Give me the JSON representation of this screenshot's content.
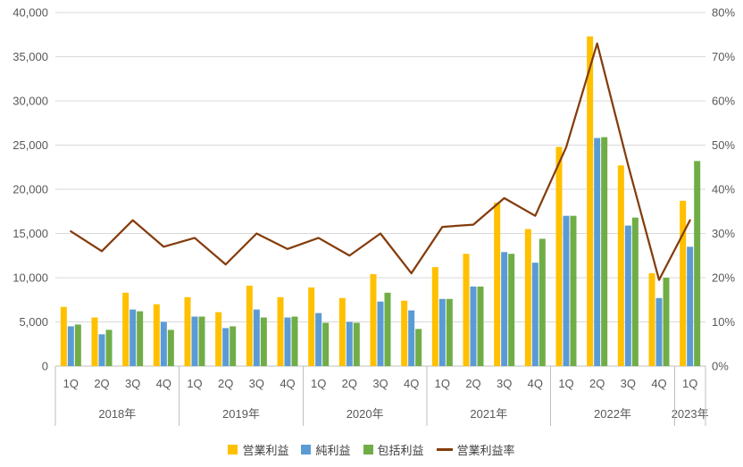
{
  "chart_data": {
    "type": "combo",
    "title": "",
    "quarter_labels": [
      "1Q",
      "2Q",
      "3Q",
      "4Q",
      "1Q",
      "2Q",
      "3Q",
      "4Q",
      "1Q",
      "2Q",
      "3Q",
      "4Q",
      "1Q",
      "2Q",
      "3Q",
      "4Q",
      "1Q",
      "2Q",
      "3Q",
      "4Q",
      "1Q"
    ],
    "year_groups": [
      {
        "label": "2018年",
        "count": 4
      },
      {
        "label": "2019年",
        "count": 4
      },
      {
        "label": "2020年",
        "count": 4
      },
      {
        "label": "2021年",
        "count": 4
      },
      {
        "label": "2022年",
        "count": 4
      },
      {
        "label": "2023年",
        "count": 1
      }
    ],
    "left_axis": {
      "min": 0,
      "max": 40000,
      "step": 5000,
      "tick_labels": [
        "0",
        "5,000",
        "10,000",
        "15,000",
        "20,000",
        "25,000",
        "30,000",
        "35,000",
        "40,000"
      ]
    },
    "right_axis": {
      "min": 0,
      "max": 80,
      "step": 10,
      "tick_labels": [
        "0%",
        "10%",
        "20%",
        "30%",
        "40%",
        "50%",
        "60%",
        "70%",
        "80%"
      ]
    },
    "grid": true,
    "legend_position": "bottom",
    "series": [
      {
        "key": "operating-profit",
        "name": "営業利益",
        "type": "bar",
        "axis": "left",
        "color": "#FFC000",
        "values": [
          6700,
          5500,
          8300,
          7000,
          7800,
          6100,
          9100,
          7800,
          8900,
          7700,
          10400,
          7400,
          11200,
          12700,
          18500,
          15500,
          24800,
          37300,
          22700,
          10500,
          18700
        ]
      },
      {
        "key": "net-profit",
        "name": "純利益",
        "type": "bar",
        "axis": "left",
        "color": "#5B9BD5",
        "values": [
          4500,
          3600,
          6400,
          5000,
          5600,
          4300,
          6400,
          5500,
          6000,
          5000,
          7300,
          6300,
          7600,
          9000,
          12900,
          11700,
          17000,
          25800,
          15900,
          7700,
          13500
        ]
      },
      {
        "key": "comprehensive-income",
        "name": "包括利益",
        "type": "bar",
        "axis": "left",
        "color": "#70AD47",
        "values": [
          4700,
          4100,
          6200,
          4100,
          5600,
          4500,
          5500,
          5600,
          4900,
          4900,
          8300,
          4200,
          7600,
          9000,
          12700,
          14400,
          17000,
          25900,
          16800,
          10000,
          23200
        ]
      },
      {
        "key": "operating-margin",
        "name": "営業利益率",
        "type": "line",
        "axis": "right",
        "color": "#843C0C",
        "values": [
          30.5,
          26,
          33,
          27,
          29,
          23,
          30,
          26.5,
          29,
          25,
          30,
          21,
          31.5,
          32,
          38,
          34,
          49.5,
          73,
          45.5,
          19.5,
          33
        ]
      }
    ]
  },
  "colors": {
    "grid": "#D9D9D9",
    "axis": "#BFBFBF",
    "text": "#595959"
  }
}
